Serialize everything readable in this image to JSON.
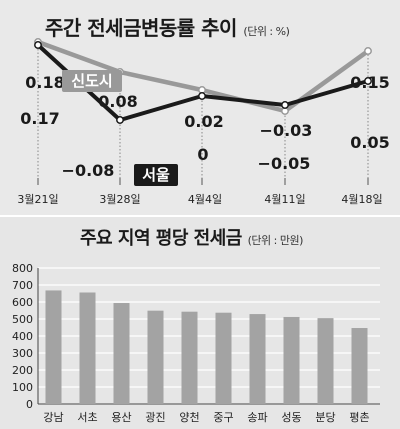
{
  "top": {
    "title": "주간 전세금변동률 추이",
    "unit": "(단위 : %)"
  },
  "bottom": {
    "title": "주요 지역 평당 전세금",
    "unit": "(단위 : 만원)"
  },
  "colors": {
    "seoul": "#1a1a1a",
    "newtown": "#999999",
    "bar": "#a3a3a3",
    "bg": "#e8e8e8"
  },
  "chart_data": [
    {
      "type": "line",
      "title": "주간 전세금변동률 추이",
      "unit": "%",
      "x": [
        "3월21일",
        "3월28일",
        "4월4일",
        "4월11일",
        "4월18일"
      ],
      "series": [
        {
          "name": "신도시",
          "values": [
            0.18,
            0.08,
            0.02,
            -0.05,
            0.15
          ],
          "labels": [
            "0.18",
            "0.08",
            "0.02",
            "−0.05",
            "0.15"
          ]
        },
        {
          "name": "서울",
          "values": [
            0.17,
            -0.08,
            0,
            -0.03,
            0.05
          ],
          "labels": [
            "0.17",
            "−0.08",
            "0",
            "−0.03",
            "0.05"
          ]
        }
      ],
      "ylim": [
        -0.1,
        0.2
      ]
    },
    {
      "type": "bar",
      "title": "주요 지역 평당 전세금",
      "unit": "만원",
      "categories": [
        "강남",
        "서초",
        "용산",
        "광진",
        "양천",
        "중구",
        "송파",
        "성동",
        "분당",
        "평촌"
      ],
      "values": [
        668,
        656,
        594,
        549,
        543,
        537,
        529,
        512,
        505,
        447
      ],
      "yticks": [
        0,
        100,
        200,
        300,
        400,
        500,
        600,
        700,
        800
      ],
      "ylim": [
        0,
        800
      ],
      "grid": true
    }
  ]
}
